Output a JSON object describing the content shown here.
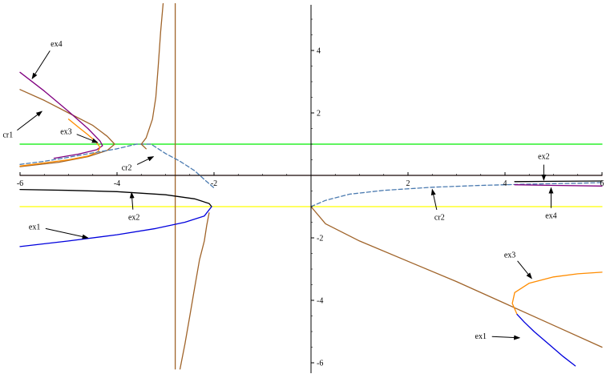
{
  "chart_data": {
    "type": "line",
    "title": "",
    "xlabel": "",
    "ylabel": "",
    "xlim": [
      -6,
      6
    ],
    "ylim": [
      -6.2,
      5.5
    ],
    "grid": false,
    "legend": "none",
    "x_ticks": [
      {
        "value": -6,
        "label": "-6"
      },
      {
        "value": -4,
        "label": "-4"
      },
      {
        "value": -2,
        "label": "-2"
      },
      {
        "value": 2,
        "label": "2"
      },
      {
        "value": 4,
        "label": "4"
      },
      {
        "value": 6,
        "label": "6"
      }
    ],
    "y_ticks": [
      {
        "value": 4,
        "label": "4"
      },
      {
        "value": 2,
        "label": "2"
      },
      {
        "value": -2,
        "label": "-2"
      },
      {
        "value": -4,
        "label": "-4"
      },
      {
        "value": -6,
        "label": "-6"
      }
    ],
    "series": [
      {
        "color": "#00ee00",
        "dash": false,
        "points": [
          [
            -6,
            1
          ],
          [
            6,
            1
          ]
        ]
      },
      {
        "color": "#ffff00",
        "dash": false,
        "points": [
          [
            -6,
            -1
          ],
          [
            6,
            -1
          ]
        ]
      },
      {
        "color": "#7a1c1c",
        "dash": false,
        "points": [
          [
            -6,
            0
          ],
          [
            6,
            0
          ]
        ]
      },
      {
        "color": "#a0642a",
        "dash": false,
        "points": [
          [
            -2.8,
            -6.2
          ],
          [
            -2.8,
            5.5
          ]
        ]
      },
      {
        "color": "#a0642a",
        "dash": false,
        "points": [
          [
            -6,
            2.75
          ],
          [
            -5.5,
            2.4
          ],
          [
            -5,
            2.0
          ],
          [
            -4.5,
            1.6
          ],
          [
            -4.2,
            1.25
          ],
          [
            -4.05,
            1.0
          ],
          [
            -4.2,
            0.8
          ],
          [
            -4.6,
            0.6
          ],
          [
            -5.2,
            0.42
          ],
          [
            -6,
            0.28
          ]
        ]
      },
      {
        "color": "#800080",
        "dash": false,
        "points": [
          [
            -6,
            3.3
          ],
          [
            -5.5,
            2.7
          ],
          [
            -5.0,
            2.05
          ],
          [
            -4.6,
            1.5
          ],
          [
            -4.35,
            1.1
          ],
          [
            -4.3,
            0.95
          ],
          [
            -4.42,
            0.82
          ],
          [
            -4.8,
            0.68
          ],
          [
            -5.3,
            0.55
          ]
        ]
      },
      {
        "color": "#ff8c00",
        "dash": false,
        "points": [
          [
            -6,
            0.3
          ],
          [
            -5.5,
            0.4
          ],
          [
            -5,
            0.5
          ],
          [
            -4.6,
            0.62
          ],
          [
            -4.4,
            0.75
          ],
          [
            -4.35,
            0.9
          ],
          [
            -4.45,
            1.1
          ],
          [
            -4.6,
            1.3
          ],
          [
            -4.8,
            1.55
          ],
          [
            -5.0,
            1.8
          ]
        ]
      },
      {
        "color": "#4a7ab0",
        "dash": true,
        "points": [
          [
            -6,
            0.35
          ],
          [
            -5.5,
            0.45
          ],
          [
            -5,
            0.58
          ],
          [
            -4.5,
            0.72
          ],
          [
            -4.0,
            0.85
          ],
          [
            -3.6,
            1.0
          ],
          [
            -3.3,
            1.0
          ],
          [
            -3.0,
            0.7
          ],
          [
            -2.7,
            0.45
          ],
          [
            -2.4,
            0.15
          ],
          [
            -2.15,
            -0.2
          ],
          [
            -2.0,
            -0.4
          ]
        ]
      },
      {
        "color": "#a0642a",
        "dash": false,
        "points": [
          [
            -3.05,
            5.5
          ],
          [
            -3.1,
            4.6
          ],
          [
            -3.15,
            3.5
          ],
          [
            -3.2,
            2.5
          ],
          [
            -3.27,
            1.8
          ],
          [
            -3.4,
            1.2
          ],
          [
            -3.5,
            1.0
          ],
          [
            -3.4,
            0.85
          ]
        ]
      },
      {
        "color": "#a0642a",
        "dash": false,
        "points": [
          [
            -2.1,
            -1.2
          ],
          [
            -2.15,
            -1.6
          ],
          [
            -2.2,
            -2.1
          ],
          [
            -2.3,
            -2.7
          ],
          [
            -2.4,
            -3.6
          ],
          [
            -2.5,
            -4.5
          ],
          [
            -2.6,
            -5.4
          ],
          [
            -2.7,
            -6.2
          ]
        ]
      },
      {
        "color": "#000000",
        "dash": false,
        "points": [
          [
            -6,
            -0.45
          ],
          [
            -5,
            -0.48
          ],
          [
            -4,
            -0.52
          ],
          [
            -3,
            -0.62
          ],
          [
            -2.4,
            -0.75
          ],
          [
            -2.1,
            -0.9
          ],
          [
            -2.05,
            -1.0
          ]
        ]
      },
      {
        "color": "#0000dd",
        "dash": false,
        "points": [
          [
            -2.05,
            -1.0
          ],
          [
            -2.2,
            -1.3
          ],
          [
            -2.6,
            -1.5
          ],
          [
            -3.2,
            -1.7
          ],
          [
            -4,
            -1.9
          ],
          [
            -5,
            -2.1
          ],
          [
            -6,
            -2.28
          ]
        ]
      },
      {
        "color": "#a0642a",
        "dash": false,
        "points": [
          [
            0,
            -1.0
          ],
          [
            0.3,
            -1.55
          ],
          [
            1,
            -2.1
          ],
          [
            2,
            -2.75
          ],
          [
            3,
            -3.4
          ],
          [
            4,
            -4.1
          ],
          [
            5,
            -4.8
          ],
          [
            6,
            -5.5
          ]
        ]
      },
      {
        "color": "#4a7ab0",
        "dash": true,
        "points": [
          [
            0,
            -1.0
          ],
          [
            0.3,
            -0.8
          ],
          [
            0.8,
            -0.6
          ],
          [
            1.5,
            -0.48
          ],
          [
            2.5,
            -0.38
          ],
          [
            3.5,
            -0.32
          ],
          [
            4.5,
            -0.28
          ],
          [
            5.5,
            -0.25
          ],
          [
            6,
            -0.23
          ]
        ]
      },
      {
        "color": "#000000",
        "dash": false,
        "points": [
          [
            4.2,
            -0.2
          ],
          [
            5,
            -0.19
          ],
          [
            6,
            -0.18
          ]
        ]
      },
      {
        "color": "#800080",
        "dash": false,
        "points": [
          [
            4.2,
            -0.3
          ],
          [
            5,
            -0.32
          ],
          [
            6,
            -0.34
          ]
        ]
      },
      {
        "color": "#ff8c00",
        "dash": false,
        "points": [
          [
            6,
            -3.1
          ],
          [
            5.5,
            -3.15
          ],
          [
            5,
            -3.25
          ],
          [
            4.5,
            -3.45
          ],
          [
            4.2,
            -3.75
          ],
          [
            4.15,
            -4.1
          ],
          [
            4.25,
            -4.45
          ]
        ]
      },
      {
        "color": "#0000dd",
        "dash": false,
        "points": [
          [
            4.25,
            -4.45
          ],
          [
            4.4,
            -4.7
          ],
          [
            4.6,
            -5.0
          ],
          [
            4.9,
            -5.4
          ],
          [
            5.2,
            -5.8
          ],
          [
            5.45,
            -6.1
          ]
        ]
      }
    ],
    "annotations": [
      {
        "label": "ex4",
        "tx": -5.25,
        "ty": 4.2,
        "ax": -5.75,
        "ay": 3.1
      },
      {
        "label": "cr1",
        "tx": -6.25,
        "ty": 1.3,
        "ax": -5.55,
        "ay": 2.05
      },
      {
        "label": "ex3",
        "tx": -5.05,
        "ty": 1.4,
        "ax": -4.4,
        "ay": 1.05
      },
      {
        "label": "cr2",
        "tx": -3.8,
        "ty": 0.25,
        "ax": -3.25,
        "ay": 0.6
      },
      {
        "label": "ex2",
        "tx": -3.65,
        "ty": -1.35,
        "ax": -3.7,
        "ay": -0.55
      },
      {
        "label": "ex1",
        "tx": -5.7,
        "ty": -1.65,
        "ax": -4.6,
        "ay": -2.0
      },
      {
        "label": "ex2",
        "tx": 4.8,
        "ty": 0.6,
        "ax": 4.8,
        "ay": -0.15
      },
      {
        "label": "cr2",
        "tx": 2.65,
        "ty": -1.35,
        "ax": 2.5,
        "ay": -0.45
      },
      {
        "label": "ex4",
        "tx": 4.95,
        "ty": -1.3,
        "ax": 4.95,
        "ay": -0.4
      },
      {
        "label": "ex3",
        "tx": 4.1,
        "ty": -2.55,
        "ax": 4.55,
        "ay": -3.3
      },
      {
        "label": "ex1",
        "tx": 3.5,
        "ty": -5.15,
        "ax": 4.3,
        "ay": -5.2
      }
    ]
  }
}
